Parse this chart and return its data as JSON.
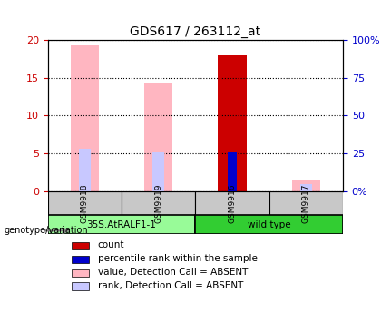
{
  "title": "GDS617 / 263112_at",
  "samples": [
    "GSM9918",
    "GSM9919",
    "GSM9916",
    "GSM9917"
  ],
  "groups": [
    "35S.AtRALF1-1",
    "35S.AtRALF1-1",
    "wild type",
    "wild type"
  ],
  "group_colors": [
    "#90EE90",
    "#90EE90",
    "#32CD32",
    "#32CD32"
  ],
  "absent_value_bars": [
    19.3,
    14.3,
    0,
    1.6
  ],
  "absent_rank_bars": [
    5.6,
    5.1,
    0,
    0.9
  ],
  "count_bars": [
    0,
    0,
    17.9,
    0
  ],
  "present_rank_bars": [
    0,
    0,
    5.1,
    0
  ],
  "ylim_left": [
    0,
    20
  ],
  "ylim_right": [
    0,
    100
  ],
  "yticks_left": [
    0,
    5,
    10,
    15,
    20
  ],
  "yticks_right": [
    0,
    25,
    50,
    75,
    100
  ],
  "ytick_labels_left": [
    "0",
    "5",
    "10",
    "15",
    "20"
  ],
  "ytick_labels_right": [
    "0%",
    "25",
    "50",
    "75",
    "100%"
  ],
  "bar_width": 0.35,
  "color_absent_value": "#FFB6C1",
  "color_absent_rank": "#C8C8FF",
  "color_count": "#CC0000",
  "color_present_rank": "#0000CC",
  "grid_color": "#000000",
  "bg_color": "#FFFFFF",
  "plot_bg": "#F0F0F0",
  "group_label_light": "#98FB98",
  "group_label_dark": "#32CD32",
  "label_color_left": "#CC0000",
  "label_color_right": "#0000CC"
}
